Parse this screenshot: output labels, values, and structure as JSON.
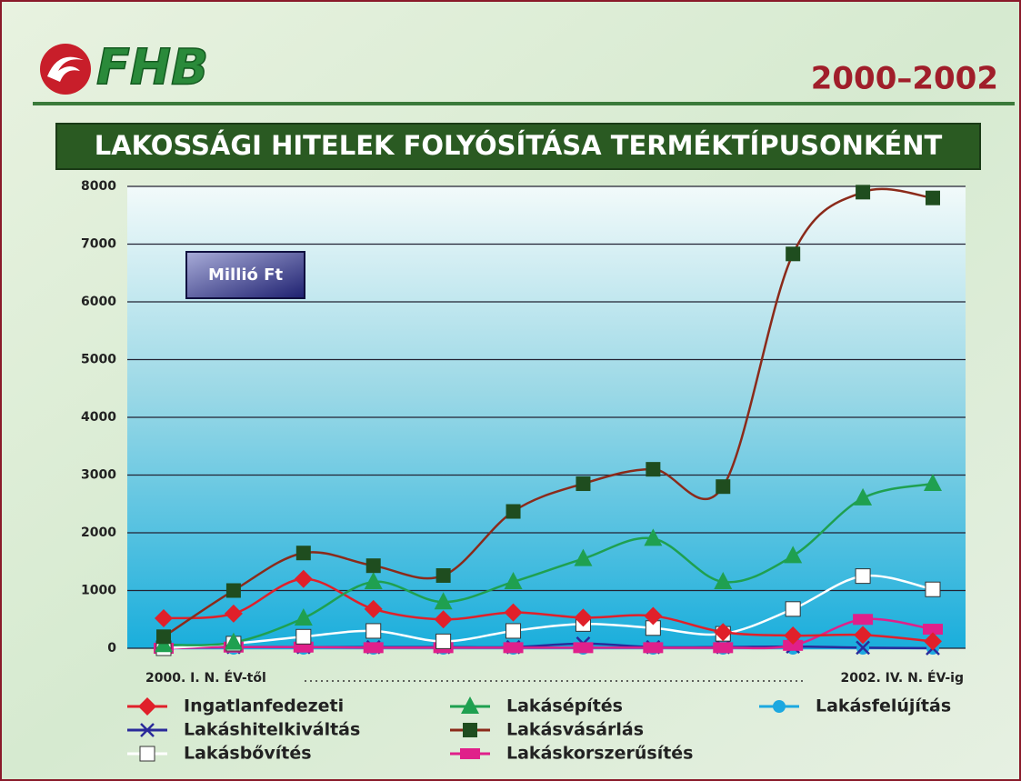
{
  "chart_data": {
    "type": "line",
    "logo_text": "FHB",
    "period": "2000–2002",
    "title": "LAKOSSÁGI HITELEK FOLYÓSÍTÁSA TERMÉKTÍPUSONKÉNT",
    "unit_label": "Millió Ft",
    "x_start_label": "2000. I. N. ÉV-től",
    "x_end_label": "2002. IV. N. ÉV-ig",
    "categories": [
      null,
      null,
      null,
      null,
      null,
      null,
      null,
      null,
      null,
      null,
      null,
      null
    ],
    "ylim": [
      0,
      8000
    ],
    "yticks": [
      0,
      1000,
      2000,
      3000,
      4000,
      5000,
      6000,
      7000,
      8000
    ],
    "grid": true,
    "series": [
      {
        "name": "Ingatlanfedezeti",
        "color": "#e0202a",
        "marker_color": "#e0202a",
        "marker": "diamond",
        "values": [
          520,
          600,
          1200,
          680,
          500,
          620,
          530,
          560,
          280,
          220,
          230,
          120
        ]
      },
      {
        "name": "Lakáshitelkiváltás",
        "color": "#2a2a9a",
        "marker_color": "#2a2a9a",
        "marker": "x",
        "values": [
          0,
          20,
          20,
          20,
          20,
          20,
          80,
          20,
          20,
          30,
          10,
          0
        ]
      },
      {
        "name": "Lakásbővítés",
        "color": "#ffffff",
        "marker_color": "#ffffff",
        "marker": "square",
        "values": [
          0,
          80,
          200,
          300,
          120,
          300,
          420,
          350,
          250,
          680,
          1250,
          1020
        ]
      },
      {
        "name": "Lakásépítés",
        "color": "#1fa050",
        "marker_color": "#1fa050",
        "marker": "triangle",
        "values": [
          60,
          100,
          520,
          1150,
          800,
          1150,
          1550,
          1900,
          1150,
          1600,
          2600,
          2850
        ]
      },
      {
        "name": "Lakásvásárlás",
        "color": "#8b2a1a",
        "marker_color": "#1f4d1f",
        "marker": "square",
        "values": [
          200,
          1000,
          1650,
          1430,
          1260,
          2370,
          2850,
          3100,
          2800,
          6830,
          7900,
          7800
        ]
      },
      {
        "name": "Lakáskorszerűsítés",
        "color": "#e0208a",
        "marker_color": "#e0208a",
        "marker": "bar",
        "values": [
          0,
          20,
          20,
          10,
          10,
          10,
          10,
          10,
          10,
          50,
          500,
          330
        ]
      },
      {
        "name": "Lakásfelújítás",
        "color": "#1ca8e0",
        "marker_color": "#1ca8e0",
        "marker": "circle",
        "values": [
          0,
          0,
          0,
          0,
          0,
          0,
          0,
          0,
          0,
          0,
          0,
          0
        ]
      }
    ]
  }
}
